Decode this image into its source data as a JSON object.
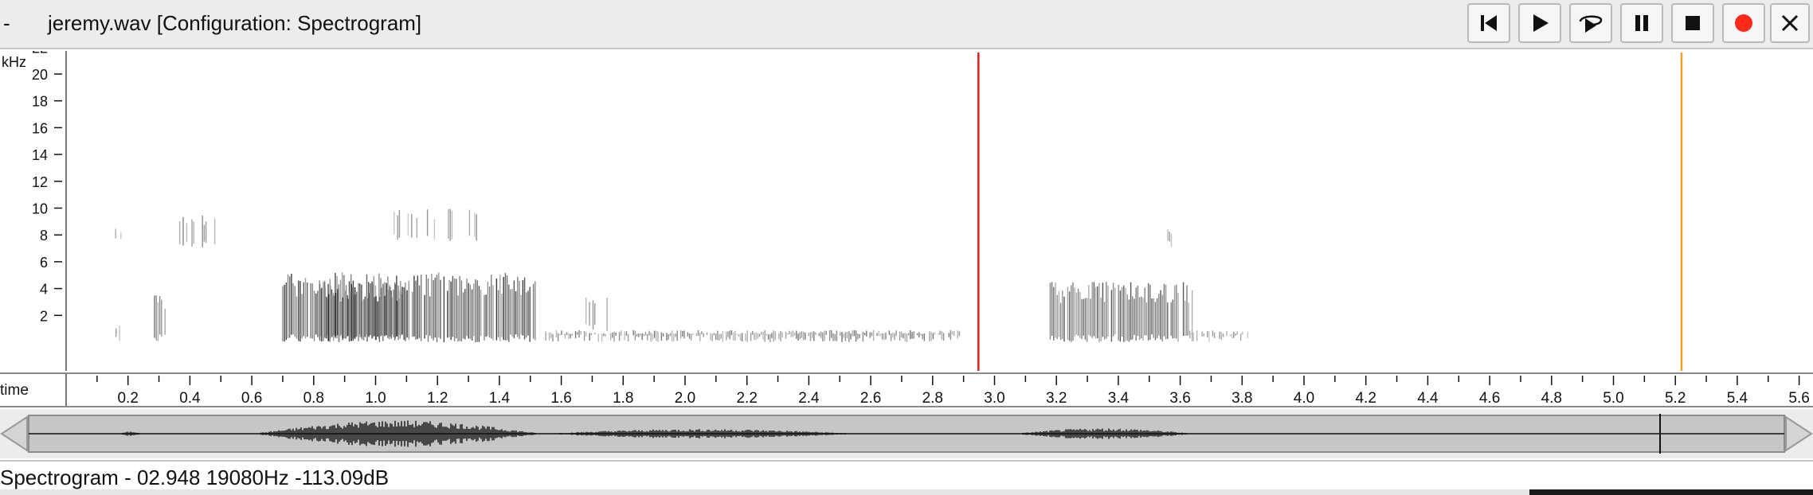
{
  "window": {
    "menu_label": "-",
    "title": "jeremy.wav [Configuration: Spectrogram]"
  },
  "transport": {
    "buttons": [
      {
        "name": "skip-to-start-button",
        "icon": "skip-to-start-icon"
      },
      {
        "name": "play-button",
        "icon": "play-icon"
      },
      {
        "name": "loop-play-button",
        "icon": "loop-play-icon"
      },
      {
        "name": "pause-button",
        "icon": "pause-icon"
      },
      {
        "name": "stop-button",
        "icon": "stop-icon"
      },
      {
        "name": "record-button",
        "icon": "record-icon"
      },
      {
        "name": "close-button",
        "icon": "close-icon"
      }
    ],
    "record_color": "#ff2a1a"
  },
  "spectrogram": {
    "unit_label": "kHz",
    "freq_ticks": [
      "22",
      "20",
      "18",
      "16",
      "14",
      "12",
      "10",
      "8",
      "6",
      "4",
      "2"
    ],
    "cursor_time": 2.948,
    "cursor_color": "#e02020",
    "end_marker_time": 5.22,
    "end_marker_color": "#f0a020"
  },
  "timeline": {
    "label": "time",
    "ticks": [
      "0.2",
      "0.4",
      "0.6",
      "0.8",
      "1.0",
      "1.2",
      "1.4",
      "1.6",
      "1.8",
      "2.0",
      "2.2",
      "2.4",
      "2.6",
      "2.8",
      "3.0",
      "3.2",
      "3.4",
      "3.6",
      "3.8",
      "4.0",
      "4.2",
      "4.4",
      "4.6",
      "4.8",
      "5.0",
      "5.2",
      "5.4",
      "5.6"
    ]
  },
  "status": {
    "text": "Spectrogram - 02.948 19080Hz -113.09dB"
  }
}
